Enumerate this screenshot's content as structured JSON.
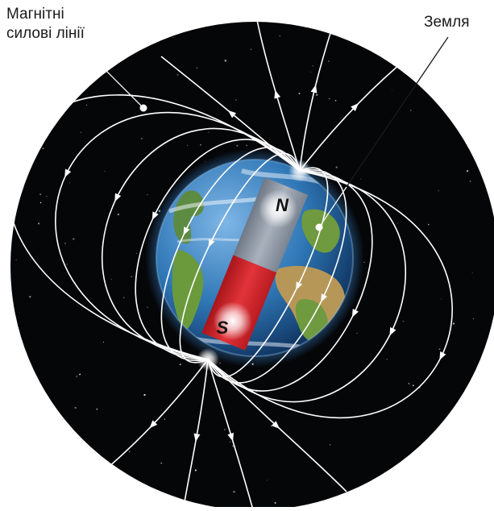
{
  "labels": {
    "field_lines_line1": "Магнітні",
    "field_lines_line2": "силові лінії",
    "earth": "Земля"
  },
  "magnet": {
    "north": "N",
    "south": "S"
  },
  "colors": {
    "space": "#050608",
    "ocean": "#2f77b6",
    "land": "#6f9a3f",
    "desert": "#b79758",
    "magnet_north": "#9aa3b0",
    "magnet_south": "#d8252b",
    "field_line": "#ffffff"
  }
}
